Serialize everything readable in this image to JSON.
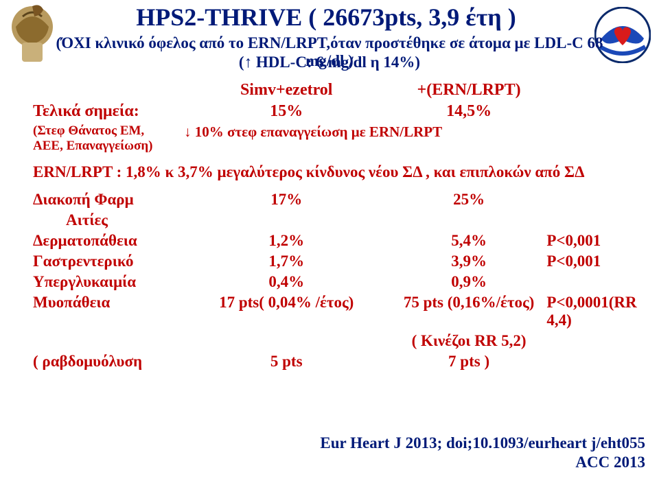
{
  "title": "HPS2-THRIVE     ( 26673pts,  3,9 έτη )",
  "subtitle1": "(ΌΧΙ κλινικό όφελος από το ERN/LRPT,όταν προστέθηκε σε άτομα με LDL-C 68 mg/dl )",
  "subtitle2": "(↑ HDL-C: 6 mg/dl η 14%)",
  "hdr_simv": "Simv+ezetrol",
  "hdr_ern": "+(ERN/LRPT)",
  "endpoints_label": "Τελικά σημεία:",
  "endpoints_simv": "15%",
  "endpoints_ern": "14,5%",
  "substudy": "(Στεφ Θάνατος ΕΜ,\nΑΕΕ, Επαναγγείωση)",
  "substudy_val": "↓ 10% στεφ επαναγγείωση με  ERN/LRPT",
  "ern_line": "ERN/LRPT :     1,8% κ 3,7% μεγαλύτερος κίνδυνος νέου  ΣΔ ,  και επιπλοκών από ΣΔ",
  "rows": [
    {
      "label": "Διακοπή  Φαρμ",
      "c2": "17%",
      "c3": "25%",
      "c4": ""
    },
    {
      "label": "Αιτίες",
      "c2": "",
      "c3": "",
      "c4": ""
    },
    {
      "label": "Δερματοπάθεια",
      "c2": "1,2%",
      "c3": "5,4%",
      "c4": "P<0,001"
    },
    {
      "label": "Γαστρεντερικό",
      "c2": "1,7%",
      "c3": "3,9%",
      "c4": "P<0,001"
    },
    {
      "label": "Υπεργλυκαιμία",
      "c2": "0,4%",
      "c3": "0,9%",
      "c4": ""
    },
    {
      "label": "Μυοπάθεια",
      "c2": "17 pts( 0,04% /έτος)",
      "c3": "75 pts (0,16%/έτος)",
      "c4": "P<0,0001(RR 4,4)"
    },
    {
      "label": "",
      "c2": "",
      "c3": "( Κινέζοι RR 5,2)",
      "c4": ""
    },
    {
      "label": "( ραβδομυόλυση",
      "c2": "5 pts",
      "c3": "7 pts )",
      "c4": ""
    }
  ],
  "footer1": "Eur  Heart  J  2013; doi;10.1093/eurheart j/eht055",
  "footer2": "ACC 2013",
  "colors": {
    "title": "#001a78",
    "body": "#c00000",
    "bg": "#ffffff"
  },
  "fonts": {
    "title_size": 36,
    "subtitle_size": 23,
    "body_size": 23
  }
}
